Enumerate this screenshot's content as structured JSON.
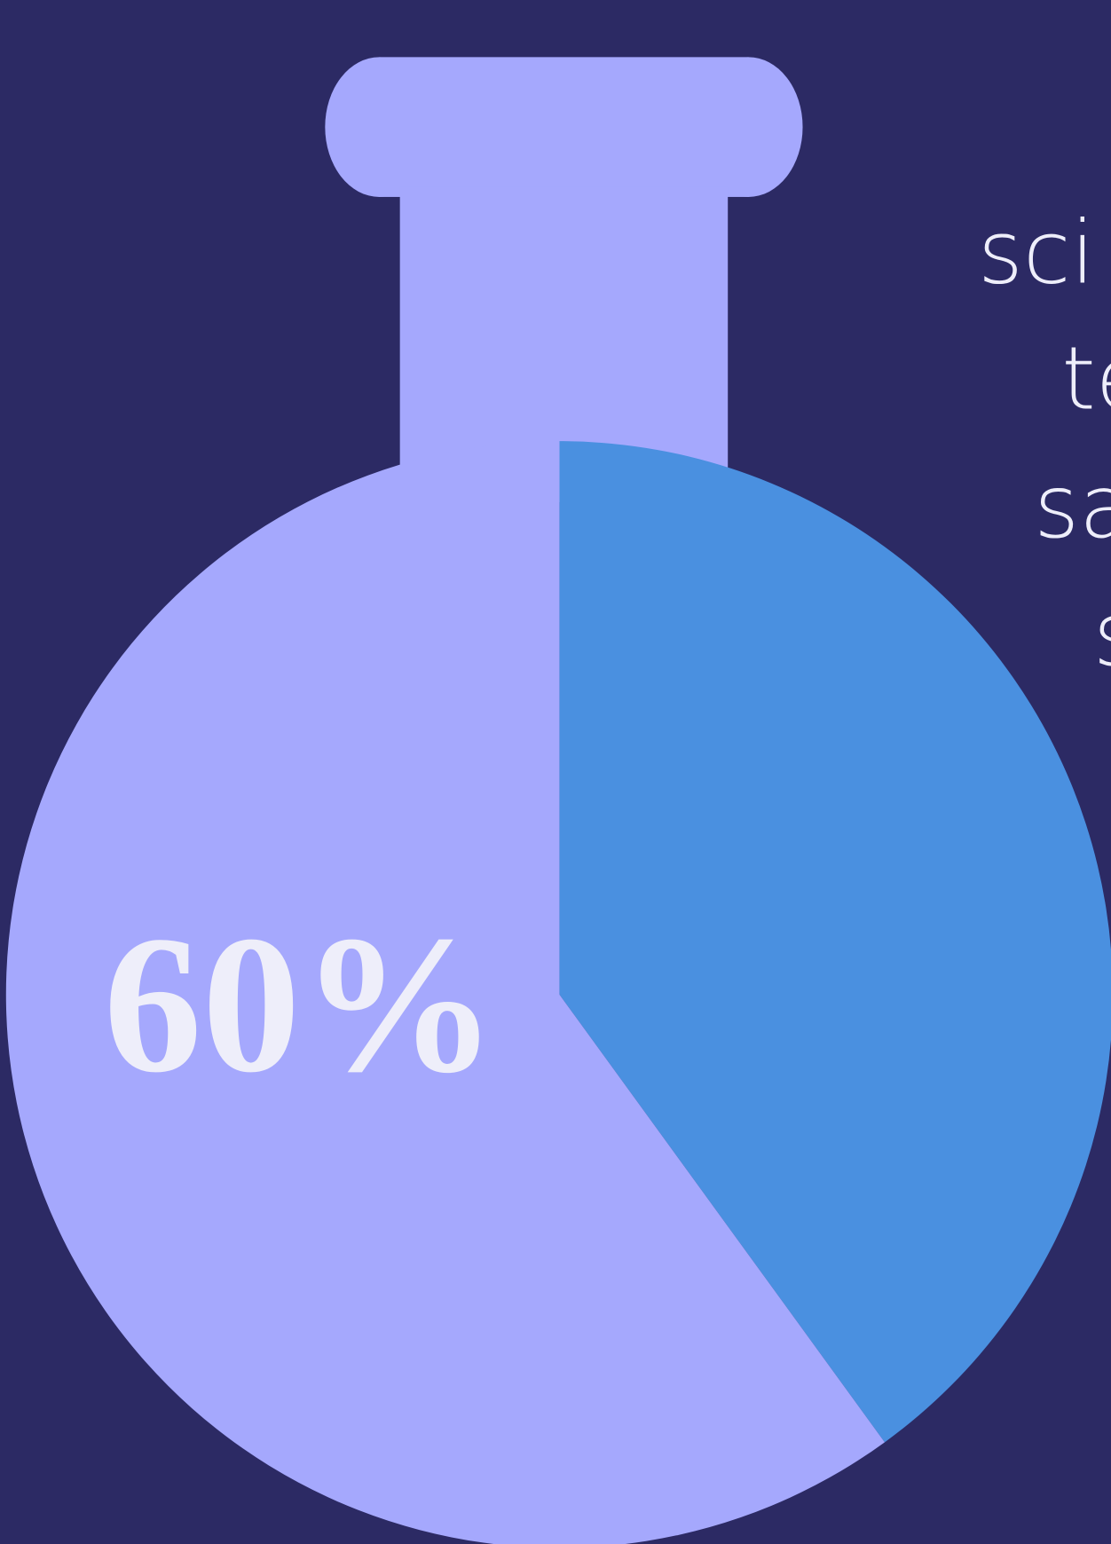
{
  "chart_data": {
    "type": "pie",
    "values": [
      60,
      40
    ],
    "value_labels": [
      "60%",
      null
    ],
    "colors": [
      "#a5a8fd",
      "#4a90e0"
    ],
    "side_text": [
      "sci",
      "te",
      "sa",
      "s"
    ]
  }
}
